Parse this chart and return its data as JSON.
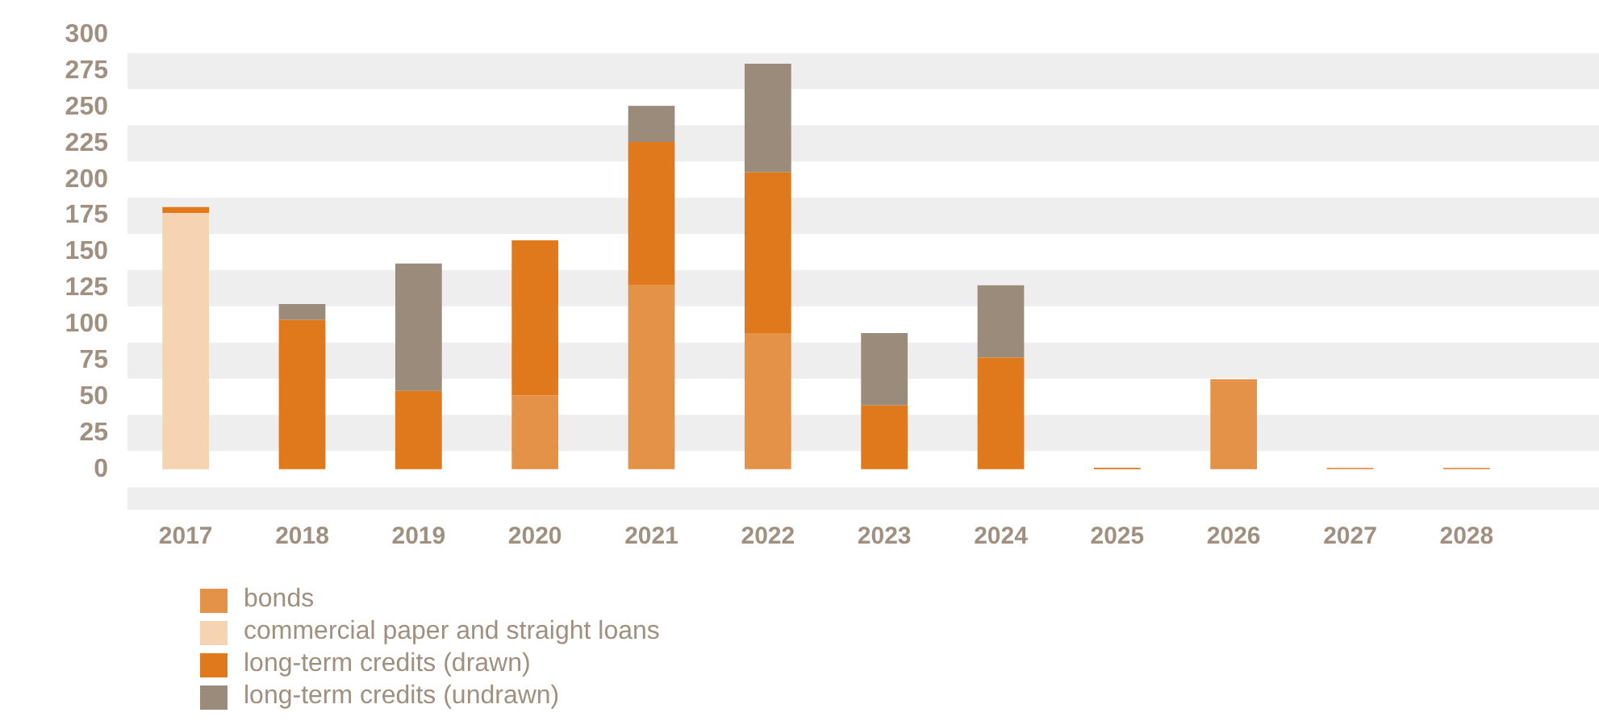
{
  "chart_data": {
    "type": "bar",
    "stacked": true,
    "categories": [
      "2017",
      "2018",
      "2019",
      "2020",
      "2021",
      "2022",
      "2023",
      "2024",
      "2025",
      "2026",
      "2027",
      "2028"
    ],
    "series": [
      {
        "name": "bonds",
        "color": "#e39247",
        "values": [
          0,
          0,
          0,
          51,
          127,
          94,
          0,
          0,
          0,
          61,
          1,
          1
        ]
      },
      {
        "name": "commercial paper and straight loans",
        "color": "#f6d3b1",
        "values": [
          177,
          null,
          null,
          0,
          0,
          0,
          0,
          0,
          0,
          0,
          0,
          0
        ]
      },
      {
        "name": "long-term credits (drawn)",
        "color": "#e0781c",
        "values": [
          4,
          103,
          54,
          107,
          99,
          111,
          44,
          77,
          1,
          1,
          0,
          0
        ]
      },
      {
        "name": "long-term credits (undrawn)",
        "color": "#9b8b7a",
        "values": [
          0,
          11,
          88,
          0,
          25,
          75,
          50,
          50,
          0,
          0,
          0,
          0
        ]
      }
    ],
    "ylim": [
      -28,
      300
    ],
    "yticks": [
      0,
      25,
      50,
      75,
      100,
      125,
      150,
      175,
      200,
      225,
      250,
      275,
      300
    ],
    "grid": false,
    "legend": "bottom",
    "bands": [
      {
        "axis": "y",
        "from": 262.5,
        "to": 287.5,
        "color": "#eeeeee"
      },
      {
        "axis": "y",
        "from": 212.5,
        "to": 237.5,
        "color": "#eeeeee"
      },
      {
        "axis": "y",
        "from": 162.5,
        "to": 187.5,
        "color": "#eeeeee"
      },
      {
        "axis": "y",
        "from": 112.5,
        "to": 137.5,
        "color": "#eeeeee"
      },
      {
        "axis": "y",
        "from": 62.5,
        "to": 87.5,
        "color": "#eeeeee"
      },
      {
        "axis": "y",
        "from": 12.5,
        "to": 37.5,
        "color": "#eeeeee"
      },
      {
        "axis": "y",
        "from": -28,
        "to": -12.5,
        "color": "#eeeeee"
      }
    ]
  }
}
